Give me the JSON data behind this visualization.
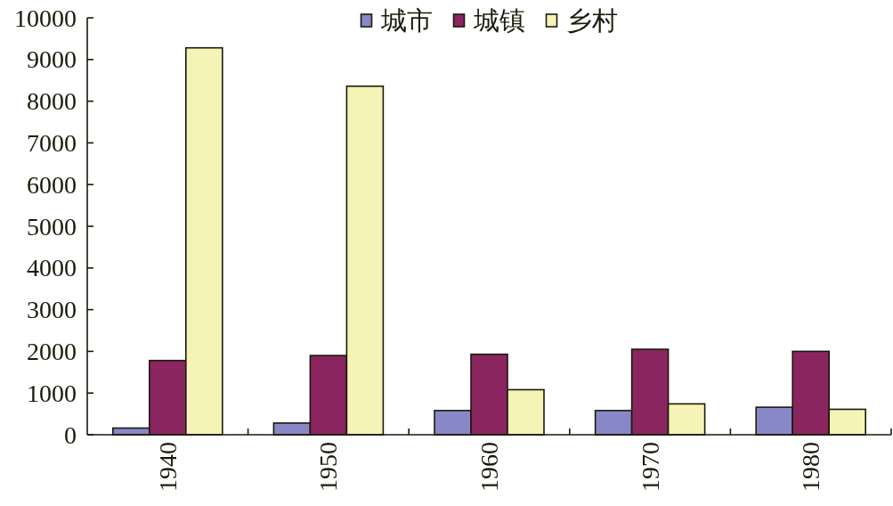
{
  "chart_data": {
    "type": "bar",
    "categories": [
      "1940",
      "1950",
      "1960",
      "1970",
      "1980"
    ],
    "series": [
      {
        "name": "城市",
        "color": "#8888c8",
        "values": [
          160,
          280,
          580,
          580,
          660
        ]
      },
      {
        "name": "城镇",
        "color": "#8a2560",
        "values": [
          1780,
          1900,
          1930,
          2050,
          2000
        ]
      },
      {
        "name": "乡村",
        "color": "#f5f3b5",
        "values": [
          9280,
          8360,
          1080,
          740,
          610
        ]
      }
    ],
    "ylim": [
      0,
      10000
    ],
    "yticks": [
      0,
      1000,
      2000,
      3000,
      4000,
      5000,
      6000,
      7000,
      8000,
      9000,
      10000
    ],
    "legend": "top"
  }
}
